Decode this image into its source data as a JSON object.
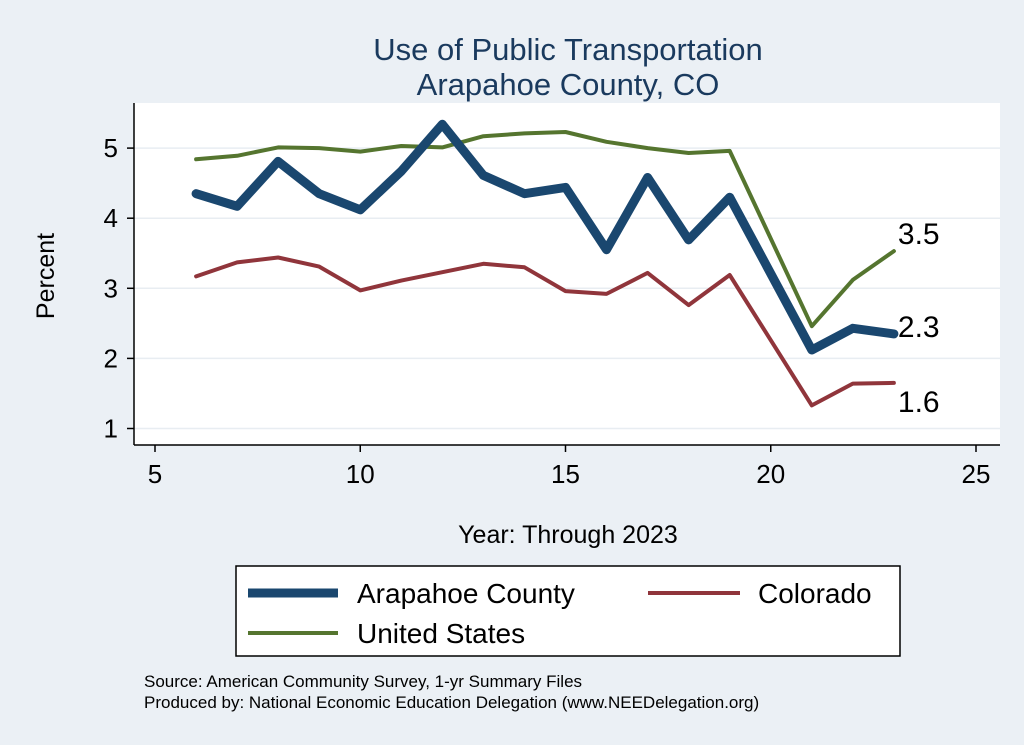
{
  "chart_data": {
    "type": "line",
    "title": [
      "Use of Public Transportation",
      "Arapahoe County, CO"
    ],
    "xlabel": "Year: Through 2023",
    "ylabel": "Percent",
    "xlim": [
      5,
      25
    ],
    "ylim": [
      0.8,
      5.5
    ],
    "xticks": [
      5,
      10,
      15,
      20,
      25
    ],
    "yticks": [
      1,
      2,
      3,
      4,
      5
    ],
    "grid": "horizontal",
    "x": [
      6,
      7,
      8,
      9,
      10,
      11,
      12,
      13,
      14,
      15,
      16,
      17,
      18,
      19,
      21,
      22,
      23
    ],
    "series": [
      {
        "name": "Arapahoe County",
        "color": "#1a476f",
        "values": [
          4.35,
          4.17,
          4.81,
          4.35,
          4.12,
          4.67,
          5.34,
          4.61,
          4.35,
          4.44,
          3.55,
          4.58,
          3.69,
          4.3,
          2.12,
          2.43,
          2.35
        ],
        "end_label": "2.3"
      },
      {
        "name": "Colorado",
        "color": "#90353b",
        "values": [
          3.17,
          3.37,
          3.44,
          3.31,
          2.97,
          3.11,
          3.23,
          3.35,
          3.3,
          2.96,
          2.92,
          3.22,
          2.76,
          3.19,
          1.33,
          1.64,
          1.65
        ],
        "end_label": "1.6"
      },
      {
        "name": "United States",
        "color": "#55752f",
        "values": [
          4.84,
          4.89,
          5.01,
          5.0,
          4.95,
          5.03,
          5.01,
          5.17,
          5.21,
          5.23,
          5.09,
          5.0,
          4.93,
          4.96,
          2.46,
          3.12,
          3.53
        ],
        "end_label": "3.5"
      }
    ],
    "legend": {
      "position": "bottom",
      "entries": [
        "Arapahoe County",
        "Colorado",
        "United States"
      ]
    },
    "notes": [
      "Source: American Community Survey, 1-yr Summary Files",
      "Produced by: National Economic Education Delegation (www.NEEDelegation.org)"
    ]
  }
}
